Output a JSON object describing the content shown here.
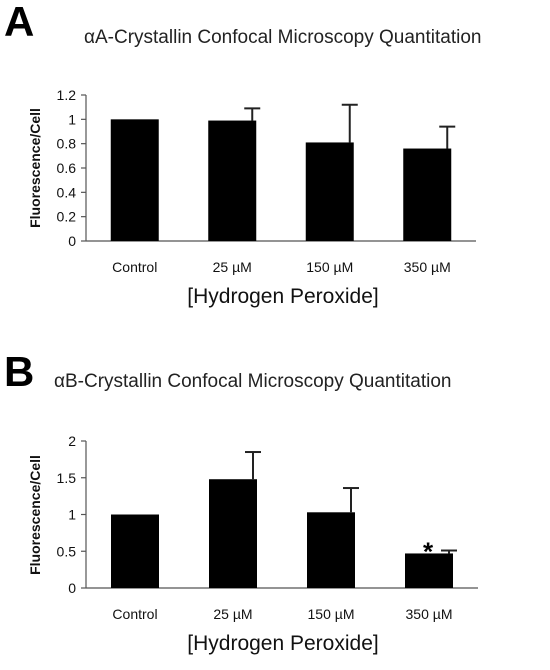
{
  "chart_data": [
    {
      "panel": "A",
      "type": "bar",
      "title": "αA-Crystallin Confocal Microscopy Quantitation",
      "xlabel": "[Hydrogen Peroxide]",
      "ylabel": "Fluorescence/Cell",
      "categories": [
        "Control",
        "25 µM",
        "150 µM",
        "350 µM"
      ],
      "values": [
        1.0,
        0.99,
        0.81,
        0.76
      ],
      "errors": [
        0.0,
        0.1,
        0.31,
        0.18
      ],
      "significance": [
        "",
        "",
        "",
        ""
      ],
      "ylim": [
        0,
        1.2
      ],
      "yticks": [
        "0",
        "0.2",
        "0.4",
        "0.6",
        "0.8",
        "1",
        "1.2"
      ],
      "grid": false,
      "bar_color": "#000000"
    },
    {
      "panel": "B",
      "type": "bar",
      "title": "αB-Crystallin Confocal Microscopy Quantitation",
      "xlabel": "[Hydrogen Peroxide]",
      "ylabel": "Fluorescence/Cell",
      "categories": [
        "Control",
        "25 µM",
        "150 µM",
        "350 µM"
      ],
      "values": [
        1.0,
        1.48,
        1.03,
        0.47
      ],
      "errors": [
        0.0,
        0.37,
        0.33,
        0.04
      ],
      "significance": [
        "",
        "",
        "",
        "*"
      ],
      "ylim": [
        0,
        2
      ],
      "yticks": [
        "0",
        "0.5",
        "1",
        "1.5",
        "2"
      ],
      "grid": false,
      "bar_color": "#000000"
    }
  ]
}
